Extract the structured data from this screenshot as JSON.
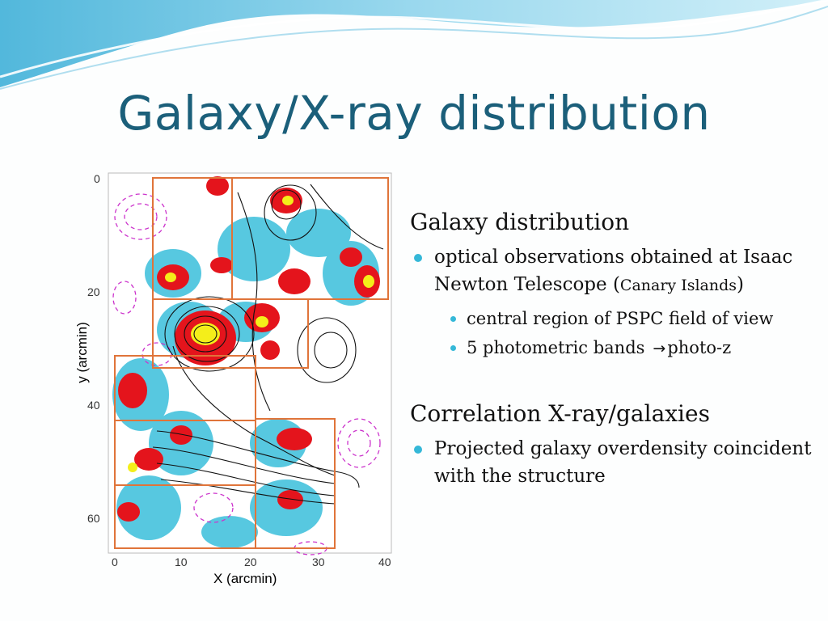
{
  "slide": {
    "title": "Galaxy/X-ray distribution",
    "accent_color": "#1b5f7a",
    "bullet_color": "#35b8d8"
  },
  "figure": {
    "x_axis_label": "X (arcmin)",
    "y_axis_label": "y (arcmin)",
    "x_ticks": [
      "0",
      "10",
      "20",
      "30",
      "40"
    ],
    "y_ticks": [
      "0",
      "20",
      "40",
      "60"
    ],
    "colors": {
      "box_outline": "#e0743a",
      "dense_core": "#f4ee1a",
      "high_density": "#e4141c",
      "mid_density": "#1fb6d6",
      "x_ray_contour": "#000000",
      "negative_contour": "#cc33cc"
    }
  },
  "content": {
    "section1": {
      "heading": "Galaxy distribution",
      "bullet1_main": "optical observations obtained at Isaac Newton Telescope (",
      "bullet1_small": "Canary Islands",
      "bullet1_end": ")",
      "sub_bullets": [
        "central region of PSPC field of view"
      ],
      "sub2_before": "5 photometric bands",
      "sub2_arrow": "→",
      "sub2_after": "photo-z"
    },
    "section2": {
      "heading": "Correlation X-ray/galaxies",
      "bullet": "Projected galaxy overdensity coincident with the structure"
    }
  }
}
